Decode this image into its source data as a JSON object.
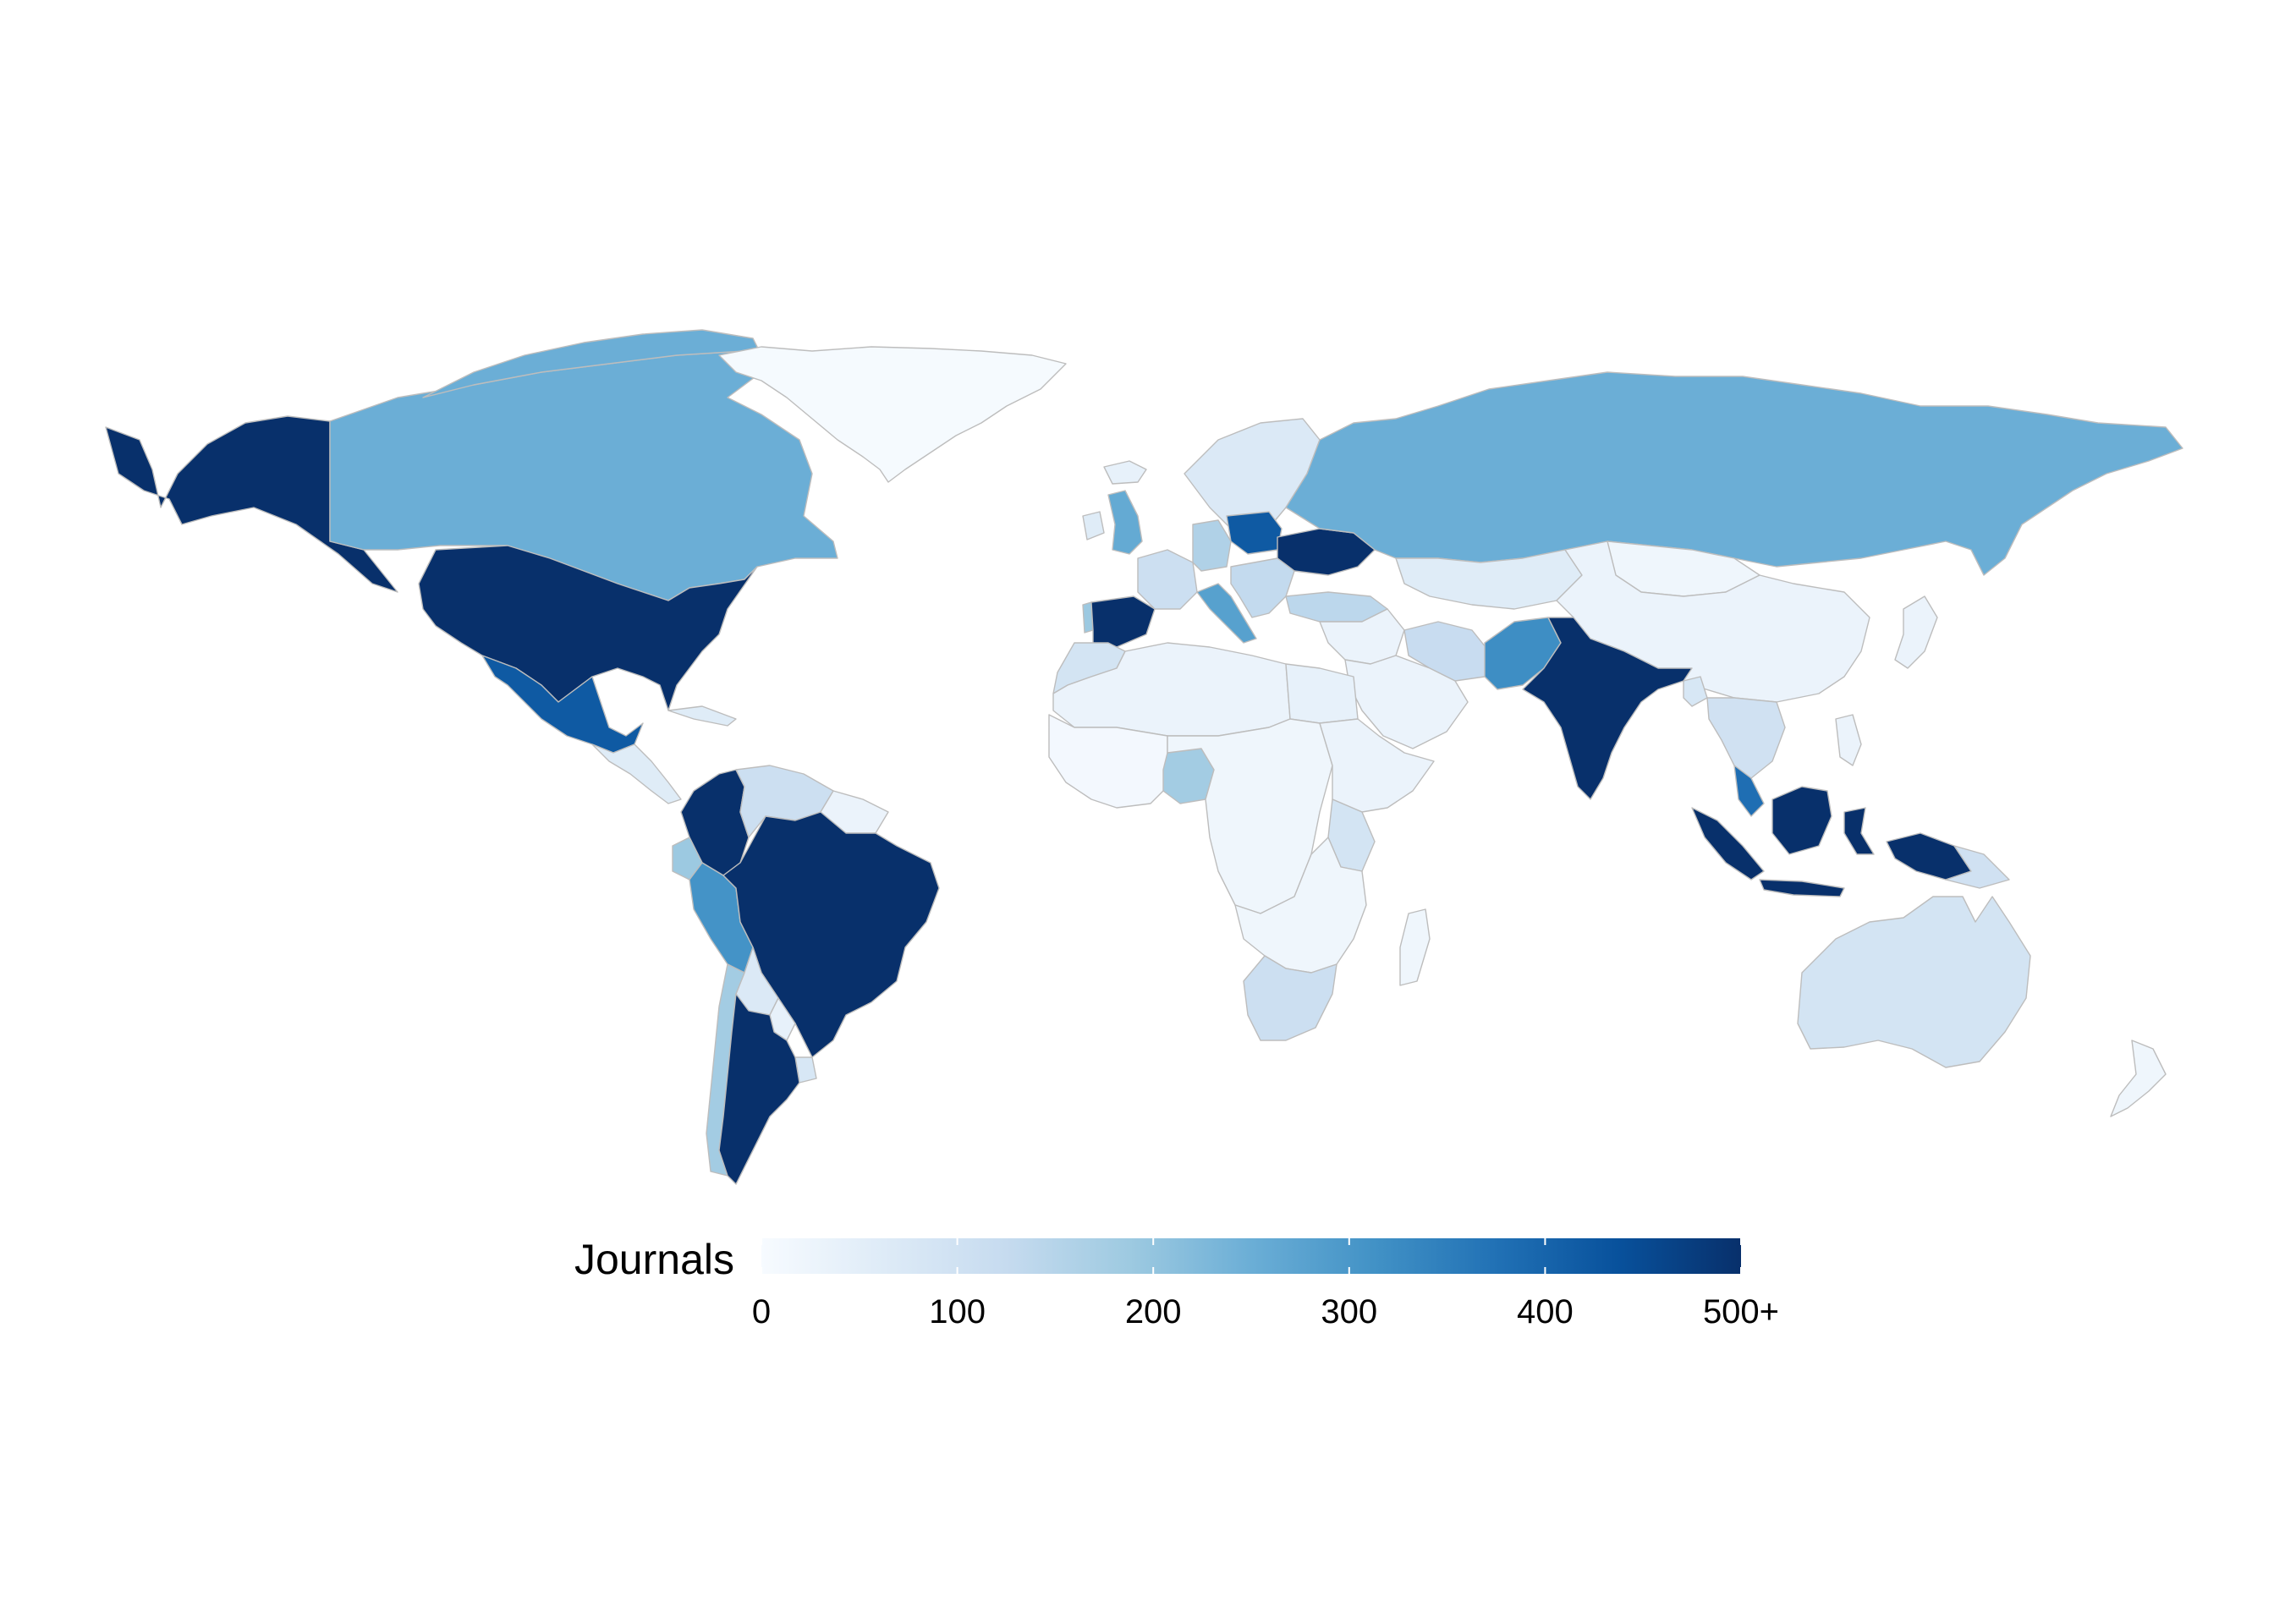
{
  "legend": {
    "title": "Journals",
    "ticks": [
      {
        "value": 0,
        "label": "0"
      },
      {
        "value": 100,
        "label": "100"
      },
      {
        "value": 200,
        "label": "200"
      },
      {
        "value": 300,
        "label": "300"
      },
      {
        "value": 400,
        "label": "400"
      },
      {
        "value": 500,
        "label": "500+"
      }
    ],
    "min": 0,
    "max": 500,
    "palette": [
      "#f7fbff",
      "#deebf7",
      "#c6dbef",
      "#9ecae1",
      "#6baed6",
      "#4292c6",
      "#2171b5",
      "#08519c",
      "#08306b"
    ]
  },
  "colors": {
    "border": "#bdbdbd",
    "background": "#ffffff"
  },
  "regions": [
    {
      "name": "Alaska (USA)",
      "value": 500
    },
    {
      "name": "Canada",
      "value": 250
    },
    {
      "name": "Greenland",
      "value": 5
    },
    {
      "name": "United States",
      "value": 500
    },
    {
      "name": "Mexico",
      "value": 420
    },
    {
      "name": "Central America",
      "value": 60
    },
    {
      "name": "Cuba",
      "value": 60
    },
    {
      "name": "Colombia",
      "value": 500
    },
    {
      "name": "Venezuela",
      "value": 110
    },
    {
      "name": "Guyana",
      "value": 30
    },
    {
      "name": "Ecuador",
      "value": 190
    },
    {
      "name": "Peru",
      "value": 310
    },
    {
      "name": "Brazil",
      "value": 500
    },
    {
      "name": "Bolivia",
      "value": 70
    },
    {
      "name": "Paraguay",
      "value": 40
    },
    {
      "name": "Chile",
      "value": 180
    },
    {
      "name": "Argentina",
      "value": 500
    },
    {
      "name": "Uruguay",
      "value": 80
    },
    {
      "name": "Iceland",
      "value": 40
    },
    {
      "name": "United Kingdom",
      "value": 260
    },
    {
      "name": "Ireland",
      "value": 60
    },
    {
      "name": "Portugal",
      "value": 190
    },
    {
      "name": "Spain",
      "value": 500
    },
    {
      "name": "France",
      "value": 110
    },
    {
      "name": "Germany",
      "value": 160
    },
    {
      "name": "Italy",
      "value": 280
    },
    {
      "name": "Poland",
      "value": 420
    },
    {
      "name": "Ukraine",
      "value": 500
    },
    {
      "name": "Scandinavia",
      "value": 70
    },
    {
      "name": "Balkans",
      "value": 130
    },
    {
      "name": "Turkey",
      "value": 140
    },
    {
      "name": "Russia",
      "value": 250
    },
    {
      "name": "Kazakhstan",
      "value": 60
    },
    {
      "name": "Mongolia",
      "value": 20
    },
    {
      "name": "China",
      "value": 30
    },
    {
      "name": "Iran",
      "value": 120
    },
    {
      "name": "Pakistan",
      "value": 320
    },
    {
      "name": "India",
      "value": 500
    },
    {
      "name": "Bangladesh",
      "value": 80
    },
    {
      "name": "Southeast Asia",
      "value": 100
    },
    {
      "name": "Malaysia",
      "value": 380
    },
    {
      "name": "Sumatra",
      "value": 500
    },
    {
      "name": "Borneo",
      "value": 500
    },
    {
      "name": "Sulawesi",
      "value": 500
    },
    {
      "name": "New Guinea",
      "value": 500
    },
    {
      "name": "Japan",
      "value": 30
    },
    {
      "name": "Philippines",
      "value": 30
    },
    {
      "name": "Australia",
      "value": 90
    },
    {
      "name": "New Zealand",
      "value": 20
    },
    {
      "name": "North Africa",
      "value": 30
    },
    {
      "name": "Morocco",
      "value": 90
    },
    {
      "name": "Egypt",
      "value": 40
    },
    {
      "name": "Middle East",
      "value": 30
    },
    {
      "name": "Arabian Peninsula",
      "value": 30
    },
    {
      "name": "West Africa",
      "value": 10
    },
    {
      "name": "Nigeria",
      "value": 180
    },
    {
      "name": "Central Africa",
      "value": 20
    },
    {
      "name": "East Africa",
      "value": 30
    },
    {
      "name": "Kenya",
      "value": 90
    },
    {
      "name": "Southern Africa",
      "value": 20
    },
    {
      "name": "South Africa",
      "value": 110
    },
    {
      "name": "Madagascar",
      "value": 20
    }
  ]
}
